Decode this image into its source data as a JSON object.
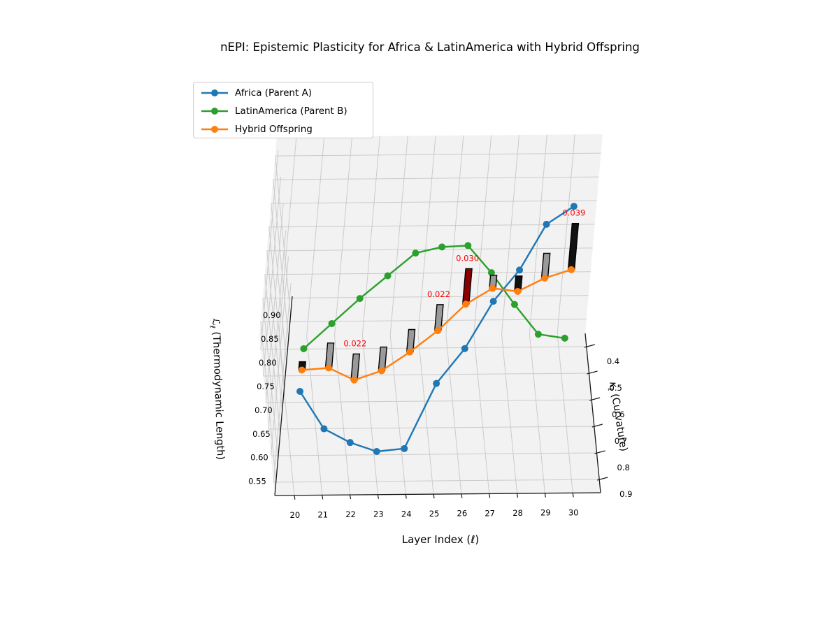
{
  "title": "nEPI: Epistemic Plasticity for Africa & LatinAmerica with Hybrid Offspring",
  "axes": {
    "xlabel": "Layer Index (ℓ)",
    "ylabel": {
      "symbol": "κ",
      "sub": "ℓ",
      "rest": " (Curvature)"
    },
    "zlabel": {
      "symbol": "ℒ",
      "sub": "ℓ",
      "rest": " (Thermodynamic Length)"
    }
  },
  "chart_data": {
    "type": "line",
    "projection": "3d",
    "title": "nEPI: Epistemic Plasticity for Africa & LatinAmerica with Hybrid Offspring",
    "xlabel": "Layer Index (ℓ)",
    "ylabel": "κℓ (Curvature)",
    "zlabel": "ℒℓ (Thermodynamic Length)",
    "layers": [
      20,
      21,
      22,
      23,
      24,
      25,
      26,
      27,
      28,
      29,
      30
    ],
    "xticks": [
      20,
      21,
      22,
      23,
      24,
      25,
      26,
      27,
      28,
      29,
      30
    ],
    "yticks": [
      0.4,
      0.5,
      0.6,
      0.7,
      0.8,
      0.9
    ],
    "zticks": [
      0.55,
      0.6,
      0.65,
      0.7,
      0.75,
      0.8,
      0.85,
      0.9
    ],
    "xlim": [
      19.3,
      31.0
    ],
    "ylim": [
      0.35,
      0.95
    ],
    "zlim": [
      0.52,
      0.94
    ],
    "y_axis_inverted": true,
    "grid": true,
    "legend_position": "upper left",
    "series": [
      {
        "name": "Africa (Parent A)",
        "color": "#1f77b4",
        "L": [
          0.7,
          0.615,
          0.58,
          0.555,
          0.555,
          0.675,
          0.72,
          0.78,
          0.795,
          0.835,
          0.85
        ],
        "kappa": [
          0.88,
          0.87,
          0.86,
          0.85,
          0.84,
          0.81,
          0.76,
          0.69,
          0.6,
          0.5,
          0.46
        ]
      },
      {
        "name": "LatinAmerica (Parent B)",
        "color": "#2ca02c",
        "L": [
          0.79,
          0.82,
          0.85,
          0.875,
          0.9,
          0.89,
          0.87,
          0.79,
          0.7,
          0.62,
          0.6
        ],
        "kappa": [
          0.88,
          0.84,
          0.8,
          0.76,
          0.72,
          0.68,
          0.64,
          0.6,
          0.56,
          0.53,
          0.51
        ]
      },
      {
        "name": "Hybrid Offspring",
        "color": "#ff7f0e",
        "L": [
          0.745,
          0.735,
          0.695,
          0.7,
          0.725,
          0.75,
          0.78,
          0.785,
          0.75,
          0.755,
          0.75
        ],
        "kappa": [
          0.88,
          0.855,
          0.83,
          0.805,
          0.78,
          0.745,
          0.7,
          0.65,
          0.6,
          0.56,
          0.52
        ]
      }
    ],
    "nepi_bars": {
      "base_series": "Hybrid Offspring",
      "values": [
        0.007,
        0.021,
        0.022,
        0.02,
        0.019,
        0.022,
        0.03,
        0.011,
        0.013,
        0.021,
        0.039
      ],
      "colors": [
        "#111111",
        "#9a9a9a",
        "#9a9a9a",
        "#9a9a9a",
        "#9a9a9a",
        "#9a9a9a",
        "#8b0000",
        "#9a9a9a",
        "#111111",
        "#9a9a9a",
        "#111111"
      ],
      "height_scale": 2.5,
      "annotations": [
        {
          "layer": 22,
          "text": "0.022"
        },
        {
          "layer": 25,
          "text": "0.022"
        },
        {
          "layer": 26,
          "text": "0.030"
        },
        {
          "layer": 30,
          "text": "0.039"
        }
      ],
      "annotation_color": "#ff0000"
    },
    "style": {
      "pane_color": "#f2f2f3",
      "grid_color": "#cbcbcb",
      "spine_color": "#1a1a1a",
      "tick_label_color": "#000000",
      "bar_edge_color": "#000000"
    }
  }
}
